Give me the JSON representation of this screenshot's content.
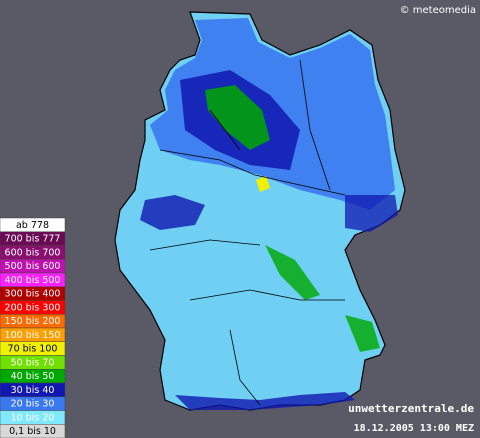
{
  "header": {
    "copyright": "© meteomedia"
  },
  "footer": {
    "site": "unwetterzentrale.de",
    "timestamp": "18.12.2005 13:00 MEZ"
  },
  "legend": {
    "items": [
      {
        "label": "ab 778",
        "color": "#ffffff"
      },
      {
        "label": "700 bis 777",
        "color": "#6a0a55"
      },
      {
        "label": "600 bis 700",
        "color": "#8a1070"
      },
      {
        "label": "500 bis 600",
        "color": "#c010b0"
      },
      {
        "label": "400 bis 500",
        "color": "#ff20ff"
      },
      {
        "label": "300 bis 400",
        "color": "#b00000"
      },
      {
        "label": "200 bis 300",
        "color": "#ff0000"
      },
      {
        "label": "150 bis 200",
        "color": "#ff6a00"
      },
      {
        "label": "100 bis 150",
        "color": "#ffa000"
      },
      {
        "label": "70 bis 100",
        "color": "#f0f000"
      },
      {
        "label": "50 bis 70",
        "color": "#70e000"
      },
      {
        "label": "40 bis 50",
        "color": "#00a800"
      },
      {
        "label": "30 bis 40",
        "color": "#1018b0"
      },
      {
        "label": "20 bis 30",
        "color": "#3a78f0"
      },
      {
        "label": "10 bis 20",
        "color": "#80e8ff"
      },
      {
        "label": "0,1 bis 10",
        "color": "#d8d8d8"
      }
    ]
  }
}
